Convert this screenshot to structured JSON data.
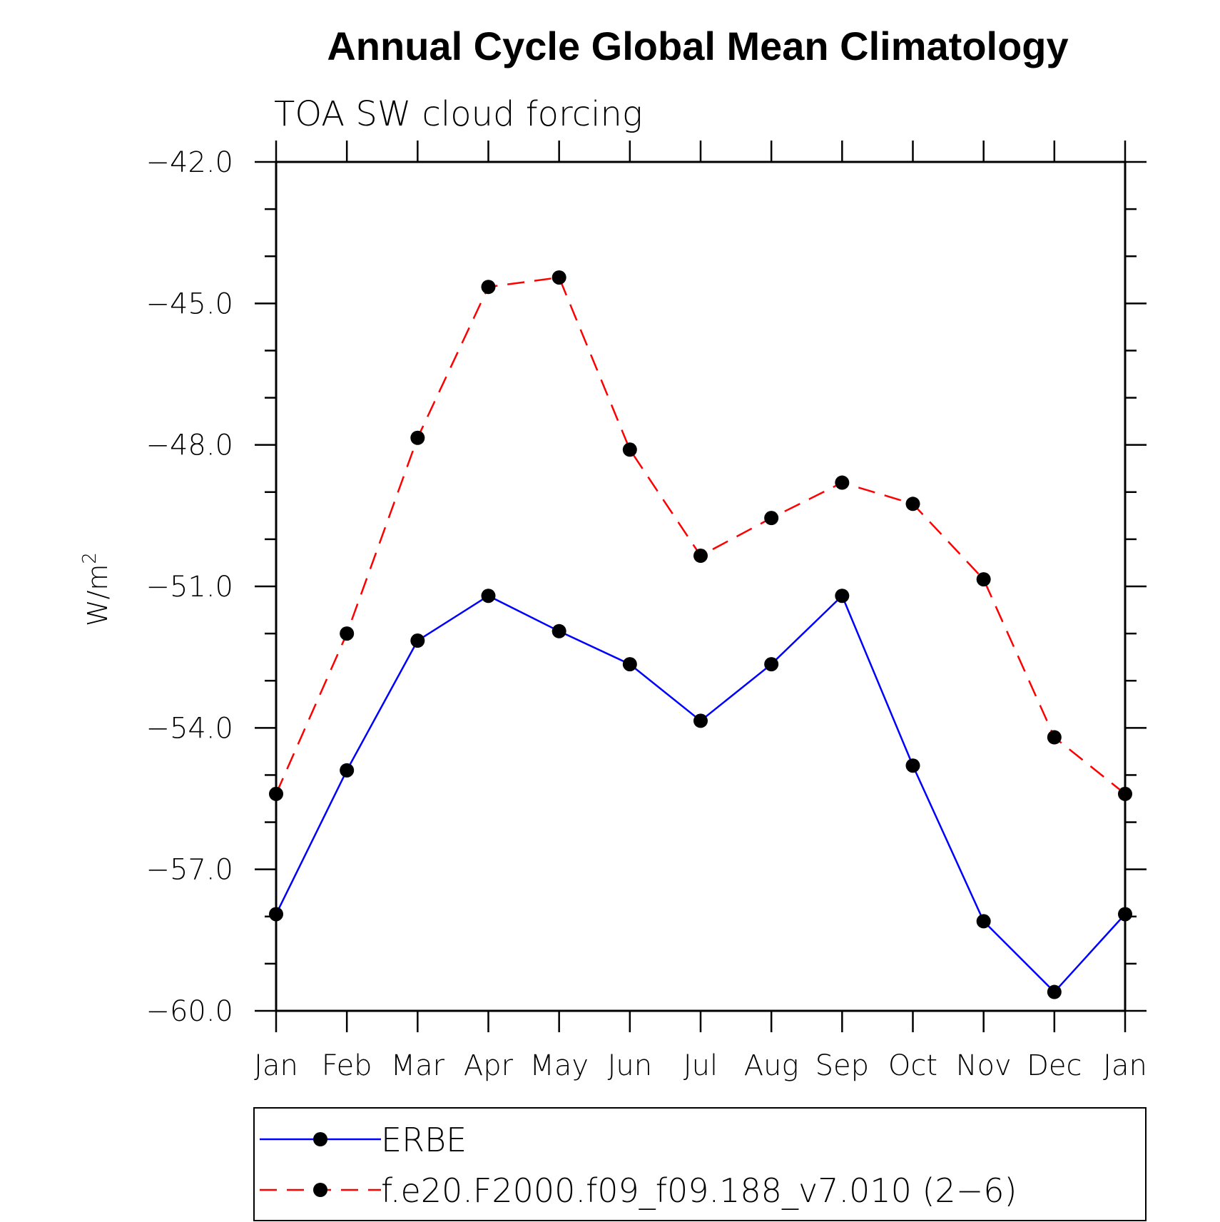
{
  "chart_data": {
    "type": "line",
    "title": "Annual Cycle Global Mean Climatology",
    "subtitle": "TOA SW cloud forcing",
    "ylabel": "W/m",
    "ylabel_sup": "2",
    "xlabel": "",
    "categories": [
      "Jan",
      "Feb",
      "Mar",
      "Apr",
      "May",
      "Jun",
      "Jul",
      "Aug",
      "Sep",
      "Oct",
      "Nov",
      "Dec",
      "Jan"
    ],
    "ylim": [
      -60.0,
      -42.0
    ],
    "yticks": [
      -42.0,
      -45.0,
      -48.0,
      -51.0,
      -54.0,
      -57.0,
      -60.0
    ],
    "ytick_labels": [
      "−42.0",
      "−45.0",
      "−48.0",
      "−51.0",
      "−54.0",
      "−57.0",
      "−60.0"
    ],
    "series": [
      {
        "name": "ERBE",
        "color": "#0000ff",
        "dash": "solid",
        "values": [
          -57.95,
          -54.9,
          -52.15,
          -51.2,
          -51.95,
          -52.65,
          -53.85,
          -52.65,
          -51.2,
          -54.8,
          -58.1,
          -59.6,
          -57.95
        ]
      },
      {
        "name": "f.e20.F2000.f09_f09.188_v7.010 (2−6)",
        "color": "#ff0000",
        "dash": "dashed",
        "values": [
          -55.4,
          -52.0,
          -47.85,
          -44.65,
          -44.45,
          -48.1,
          -50.35,
          -49.55,
          -48.8,
          -49.25,
          -50.85,
          -54.2,
          -55.4
        ]
      }
    ],
    "legend_placement": "bottom"
  }
}
